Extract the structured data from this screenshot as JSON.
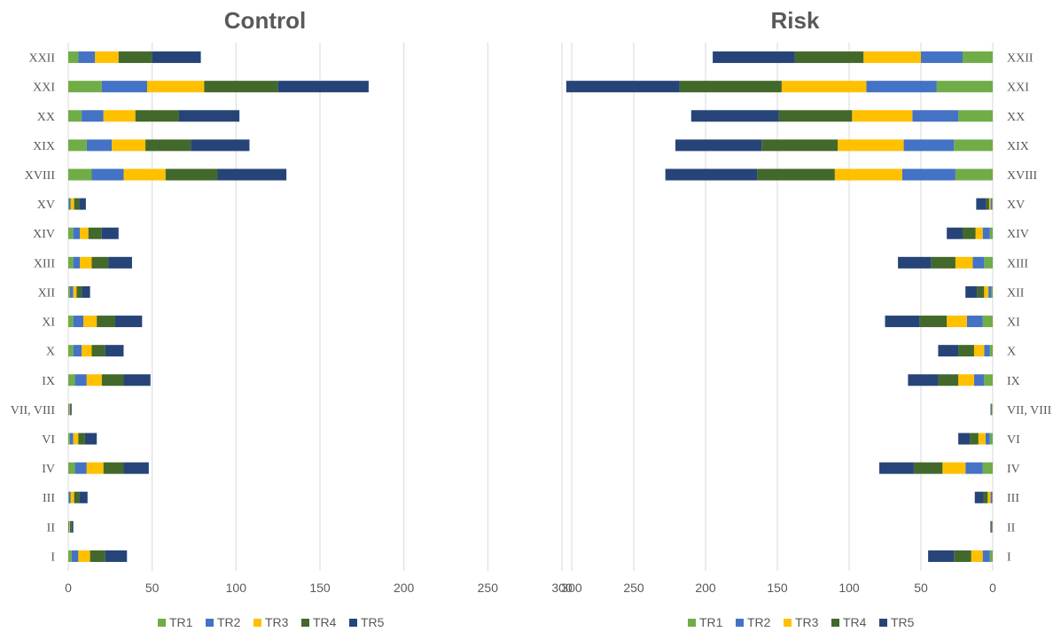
{
  "chart_data": [
    {
      "type": "bar",
      "orientation": "horizontal",
      "stacked": true,
      "title": "Control",
      "categories": [
        "I",
        "II",
        "III",
        "IV",
        "VI",
        "VII, VIII",
        "IX",
        "X",
        "XI",
        "XII",
        "XIII",
        "XIV",
        "XV",
        "XVIII",
        "XIX",
        "XX",
        "XXI",
        "XXII"
      ],
      "series": [
        {
          "name": "TR1",
          "color": "#70ad47",
          "values": [
            2,
            0,
            0.5,
            4,
            1,
            0.3,
            4,
            3,
            3,
            1,
            3,
            3,
            0.5,
            14,
            11,
            8,
            20,
            6
          ]
        },
        {
          "name": "TR2",
          "color": "#4472c4",
          "values": [
            4,
            0.5,
            1,
            7,
            2,
            0.3,
            7,
            5,
            6,
            2,
            4,
            4,
            1,
            19,
            15,
            13,
            27,
            10
          ]
        },
        {
          "name": "TR3",
          "color": "#ffc000",
          "values": [
            7,
            0.5,
            2,
            10,
            3,
            0.3,
            9,
            6,
            8,
            2,
            7,
            5,
            2,
            25,
            20,
            19,
            34,
            14
          ]
        },
        {
          "name": "TR4",
          "color": "#43682b",
          "values": [
            9,
            1,
            3,
            12,
            4,
            0.5,
            13,
            8,
            11,
            3,
            10,
            8,
            3,
            31,
            27,
            26,
            44,
            20
          ]
        },
        {
          "name": "TR5",
          "color": "#264478",
          "values": [
            13,
            1,
            5,
            15,
            7,
            0.6,
            16,
            11,
            16,
            5,
            14,
            10,
            4,
            41,
            35,
            36,
            54,
            29
          ]
        }
      ],
      "xlim": [
        0,
        300
      ],
      "xticks": [
        "0",
        "50",
        "100",
        "150",
        "200",
        "250",
        "300"
      ],
      "grid": true,
      "legend": "bottom"
    },
    {
      "type": "bar",
      "orientation": "horizontal",
      "stacked": true,
      "reversed_x": true,
      "title": "Risk",
      "categories": [
        "I",
        "II",
        "III",
        "IV",
        "VI",
        "VII, VIII",
        "IX",
        "X",
        "XI",
        "XII",
        "XIII",
        "XIV",
        "XV",
        "XVIII",
        "XIX",
        "XX",
        "XXI",
        "XXII"
      ],
      "series": [
        {
          "name": "TR1",
          "color": "#70ad47",
          "values": [
            2,
            0,
            0.5,
            7,
            2,
            0.2,
            6,
            2,
            7,
            1,
            6,
            2,
            0.5,
            26,
            27,
            24,
            39,
            21
          ]
        },
        {
          "name": "TR2",
          "color": "#4472c4",
          "values": [
            5,
            0.3,
            1,
            12,
            3,
            0.2,
            7,
            4,
            11,
            2,
            8,
            5,
            1,
            37,
            35,
            32,
            49,
            29
          ]
        },
        {
          "name": "TR3",
          "color": "#ffc000",
          "values": [
            8,
            0.3,
            2,
            16,
            5,
            0.3,
            11,
            7,
            14,
            3,
            12,
            5,
            1,
            47,
            46,
            42,
            59,
            40
          ]
        },
        {
          "name": "TR4",
          "color": "#43682b",
          "values": [
            12,
            0.5,
            3,
            20,
            6,
            0.3,
            14,
            11,
            19,
            5,
            17,
            9,
            2,
            54,
            53,
            51,
            71,
            48
          ]
        },
        {
          "name": "TR5",
          "color": "#264478",
          "values": [
            18,
            0.5,
            6,
            24,
            8,
            0.5,
            21,
            14,
            24,
            8,
            23,
            11,
            7,
            64,
            60,
            61,
            79,
            57
          ]
        }
      ],
      "xlim": [
        0,
        300
      ],
      "xticks": [
        "300",
        "250",
        "200",
        "150",
        "100",
        "50",
        "0"
      ],
      "grid": true,
      "legend": "bottom"
    }
  ]
}
